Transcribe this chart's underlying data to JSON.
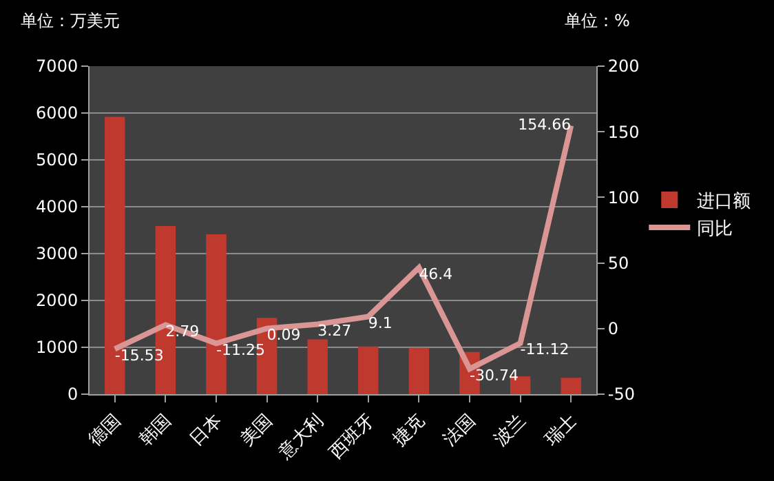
{
  "chart_data": {
    "type": "bar",
    "ylabel": "单位：万美元",
    "y2label": "单位：%",
    "categories": [
      "德国",
      "韩国",
      "日本",
      "美国",
      "意大利",
      "西班牙",
      "捷克",
      "法国",
      "波兰",
      "瑞士"
    ],
    "series": [
      {
        "name": "进口额",
        "color": "#c0392f",
        "values": [
          5920,
          3590,
          3410,
          1630,
          1170,
          1020,
          990,
          900,
          380,
          350
        ]
      },
      {
        "name": "同比",
        "type": "line",
        "axis": "y2",
        "color": "#d99694",
        "data_labels": true,
        "values": [
          -15.53,
          2.79,
          -11.25,
          0.09,
          3.27,
          9.1,
          46.4,
          -30.74,
          -11.12,
          154.66
        ]
      }
    ],
    "ylim": [
      0,
      7000
    ],
    "yticks": [
      0,
      1000,
      2000,
      3000,
      4000,
      5000,
      6000,
      7000
    ],
    "y2lim": [
      -50,
      200
    ],
    "y2ticks": [
      -50,
      0,
      50,
      100,
      150,
      200
    ],
    "grid": "y",
    "legend": "right",
    "marker": "none",
    "line_style": "solid"
  }
}
